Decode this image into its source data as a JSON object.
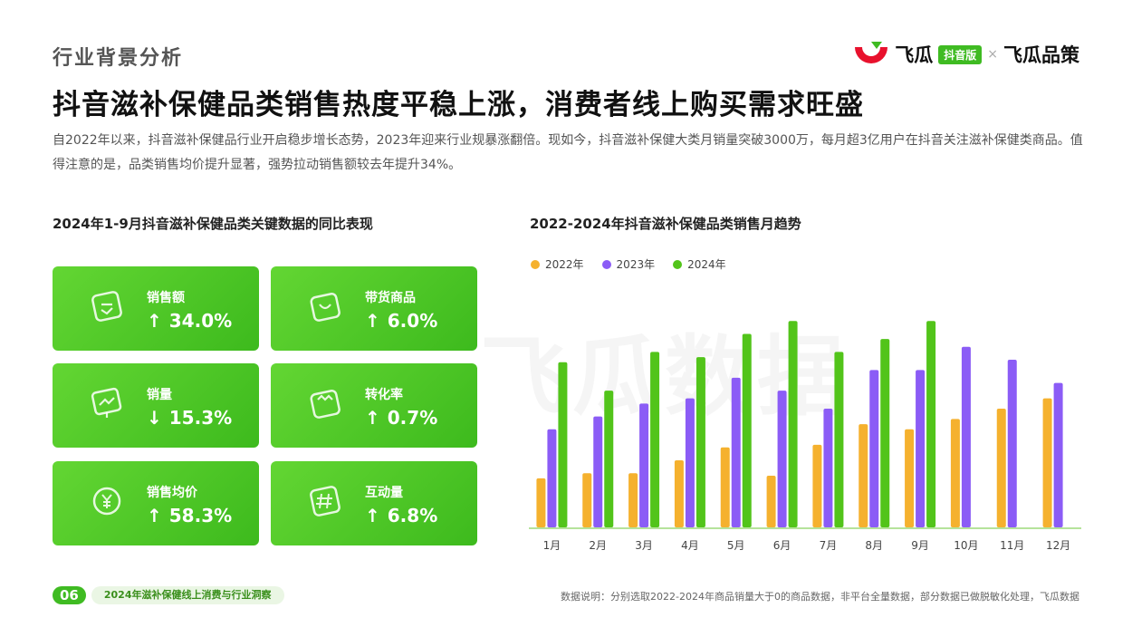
{
  "header": {
    "section_title": "行业背景分析",
    "logo_text_1": "飞瓜",
    "logo_badge": "抖音版",
    "logo_x": "×",
    "logo_text_2": "飞瓜品策"
  },
  "headline": "抖音滋补保健品类销售热度平稳上涨，消费者线上购买需求旺盛",
  "intro": "自2022年以来，抖音滋补保健品行业开启稳步增长态势，2023年迎来行业规暴涨翻倍。现如今，抖音滋补保健大类月销量突破3000万，每月超3亿用户在抖音关注滋补保健类商品。值得注意的是，品类销售均价提升显著，强势拉动销售额较去年提升34%。",
  "left_title": "2024年1-9月抖音滋补保健品类关键数据的同比表现",
  "cards": [
    {
      "label": "销售额",
      "arrow": "↑",
      "value": "34.0%",
      "icon": "document-check-icon"
    },
    {
      "label": "带货商品",
      "arrow": "↑",
      "value": "6.0%",
      "icon": "shopping-bag-icon"
    },
    {
      "label": "销量",
      "arrow": "↓",
      "value": "15.3%",
      "icon": "trend-board-icon"
    },
    {
      "label": "转化率",
      "arrow": "↑",
      "value": "0.7%",
      "icon": "box-icon"
    },
    {
      "label": "销售均价",
      "arrow": "↑",
      "value": "58.3%",
      "icon": "yen-coin-icon"
    },
    {
      "label": "互动量",
      "arrow": "↑",
      "value": "6.8%",
      "icon": "hashtag-icon"
    }
  ],
  "watermark": "飞瓜数据",
  "footer": {
    "page_number": "06",
    "report_title": "2024年滋补保健线上消费与行业洞察",
    "footnote": "数据说明：分别选取2022-2024年商品销量大于0的商品数据，非平台全量数据，部分数据已做脱敏化处理，飞瓜数据"
  },
  "chart_data": {
    "type": "bar",
    "title": "2022-2024年抖音滋补保健品类销售月趋势",
    "categories": [
      "1月",
      "2月",
      "3月",
      "4月",
      "5月",
      "6月",
      "7月",
      "8月",
      "9月",
      "10月",
      "11月",
      "12月"
    ],
    "series": [
      {
        "name": "2022年",
        "color": "#f5b12e",
        "values": [
          19,
          21,
          21,
          26,
          31,
          20,
          32,
          40,
          38,
          42,
          46,
          50
        ]
      },
      {
        "name": "2023年",
        "color": "#8b5cf6",
        "values": [
          38,
          43,
          48,
          50,
          58,
          53,
          46,
          61,
          61,
          70,
          65,
          56
        ]
      },
      {
        "name": "2024年",
        "color": "#52c41a",
        "values": [
          64,
          53,
          68,
          66,
          75,
          80,
          68,
          73,
          80,
          null,
          null,
          null
        ]
      }
    ],
    "ylim": [
      0,
      85
    ],
    "grid": false,
    "legend": "top-left"
  }
}
